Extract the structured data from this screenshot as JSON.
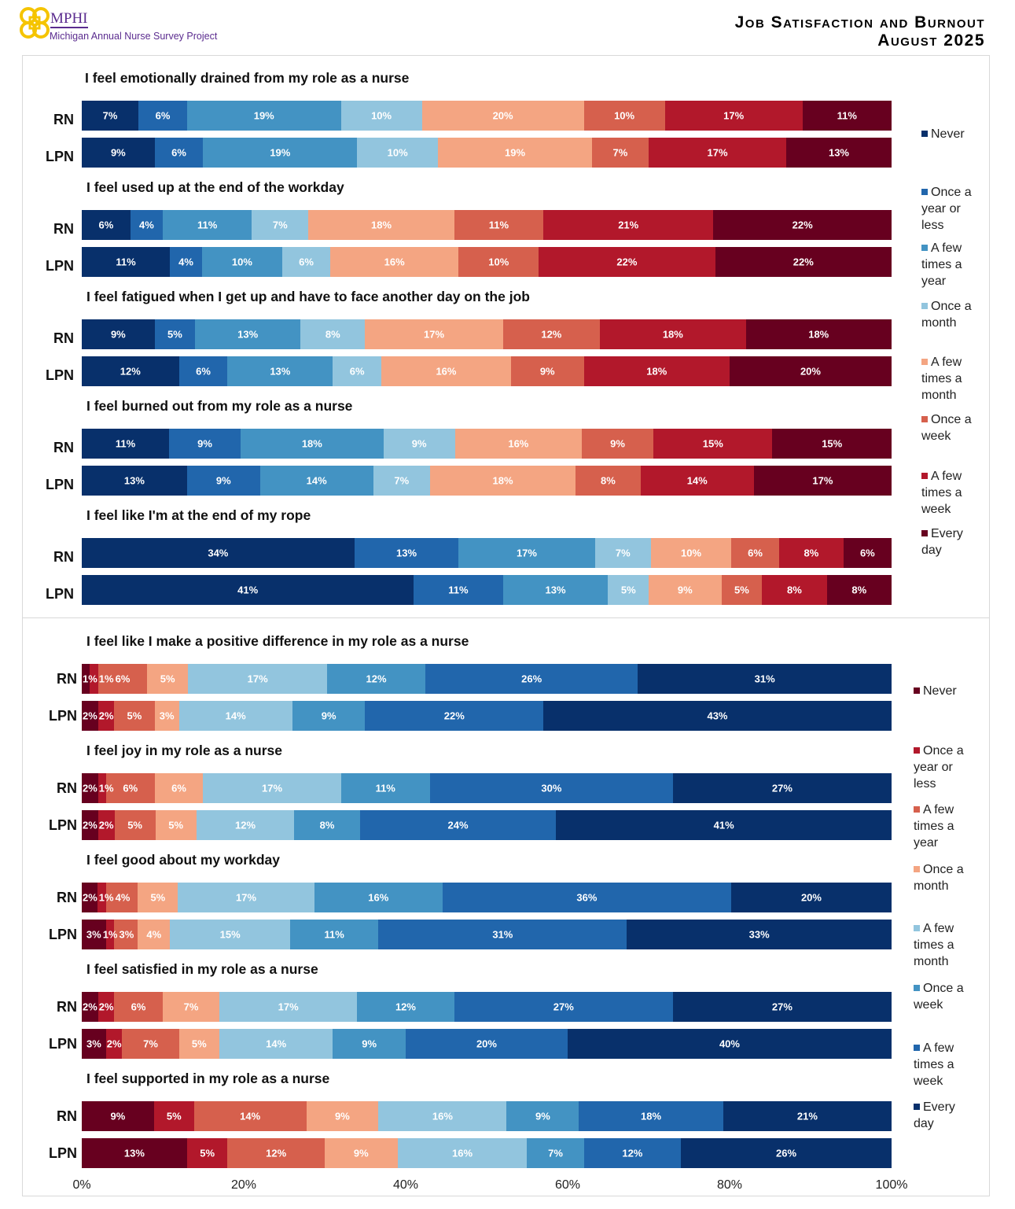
{
  "header": {
    "logo_name": "MPHI",
    "logo_subtitle": "Michigan Annual Nurse Survey Project",
    "title_line1": "Job Satisfaction and Burnout",
    "title_line2": "August 2025"
  },
  "colors": {
    "navy": "#08306b",
    "blue": "#2166ac",
    "mid_blue": "#4393c3",
    "light_blue": "#92c5de",
    "light_orange": "#f4a582",
    "orange_red": "#d6604d",
    "red": "#b2182b",
    "dark_red": "#67001f"
  },
  "chart_data": [
    {
      "type": "bar",
      "orientation": "horizontal",
      "stacked": "100%",
      "legend_placement": "right",
      "legend": [
        "Never",
        "Once a year or less",
        "A few times a year",
        "Once a month",
        "A few times a month",
        "Once a week",
        "A few times a week",
        "Every day"
      ],
      "legend_colors": [
        "#08306b",
        "#2166ac",
        "#4393c3",
        "#92c5de",
        "#f4a582",
        "#d6604d",
        "#b2182b",
        "#67001f"
      ],
      "groups": [
        {
          "title": "I feel emotionally drained from my role as a nurse",
          "rows": [
            {
              "label": "RN",
              "values": [
                7,
                6,
                19,
                10,
                20,
                10,
                17,
                11
              ]
            },
            {
              "label": "LPN",
              "values": [
                9,
                6,
                19,
                10,
                19,
                7,
                17,
                13
              ]
            }
          ]
        },
        {
          "title": "I feel used up at the end of the workday",
          "rows": [
            {
              "label": "RN",
              "values": [
                6,
                4,
                11,
                7,
                18,
                11,
                21,
                22
              ]
            },
            {
              "label": "LPN",
              "values": [
                11,
                4,
                10,
                6,
                16,
                10,
                22,
                22
              ]
            }
          ]
        },
        {
          "title": "I feel fatigued when I get up and have to face another day on the job",
          "rows": [
            {
              "label": "RN",
              "values": [
                9,
                5,
                13,
                8,
                17,
                12,
                18,
                18
              ]
            },
            {
              "label": "LPN",
              "values": [
                12,
                6,
                13,
                6,
                16,
                9,
                18,
                20
              ]
            }
          ]
        },
        {
          "title": "I feel burned out from my role as a nurse",
          "rows": [
            {
              "label": "RN",
              "values": [
                11,
                9,
                18,
                9,
                16,
                9,
                15,
                15
              ]
            },
            {
              "label": "LPN",
              "values": [
                13,
                9,
                14,
                7,
                18,
                8,
                14,
                17
              ]
            }
          ]
        },
        {
          "title": "I feel like I'm at the end of my rope",
          "rows": [
            {
              "label": "RN",
              "values": [
                34,
                13,
                17,
                7,
                10,
                6,
                8,
                6
              ]
            },
            {
              "label": "LPN",
              "values": [
                41,
                11,
                13,
                5,
                9,
                5,
                8,
                8
              ]
            }
          ]
        }
      ]
    },
    {
      "type": "bar",
      "orientation": "horizontal",
      "stacked": "100%",
      "legend_placement": "right",
      "legend": [
        "Never",
        "Once a year or less",
        "A few times a year",
        "Once a month",
        "A few times a month",
        "Once a week",
        "A few times a week",
        "Every day"
      ],
      "legend_colors": [
        "#67001f",
        "#b2182b",
        "#d6604d",
        "#f4a582",
        "#92c5de",
        "#4393c3",
        "#2166ac",
        "#08306b"
      ],
      "groups": [
        {
          "title": "I feel like I make a positive difference in my role as a nurse",
          "rows": [
            {
              "label": "RN",
              "values": [
                1,
                1,
                6,
                5,
                17,
                12,
                26,
                31
              ]
            },
            {
              "label": "LPN",
              "values": [
                2,
                2,
                5,
                3,
                14,
                9,
                22,
                43
              ]
            }
          ]
        },
        {
          "title": "I feel joy in my role as a nurse",
          "rows": [
            {
              "label": "RN",
              "values": [
                2,
                1,
                6,
                6,
                17,
                11,
                30,
                27
              ]
            },
            {
              "label": "LPN",
              "values": [
                2,
                2,
                5,
                5,
                12,
                8,
                24,
                41
              ]
            }
          ]
        },
        {
          "title": "I feel good about my workday",
          "rows": [
            {
              "label": "RN",
              "values": [
                2,
                1,
                4,
                5,
                17,
                16,
                36,
                20
              ]
            },
            {
              "label": "LPN",
              "values": [
                3,
                1,
                3,
                4,
                15,
                11,
                31,
                33
              ]
            }
          ]
        },
        {
          "title": "I feel satisfied in my role as a nurse",
          "rows": [
            {
              "label": "RN",
              "values": [
                2,
                2,
                6,
                7,
                17,
                12,
                27,
                27
              ]
            },
            {
              "label": "LPN",
              "values": [
                3,
                2,
                7,
                5,
                14,
                9,
                20,
                40
              ]
            }
          ]
        },
        {
          "title": "I feel supported in my role as a nurse",
          "rows": [
            {
              "label": "RN",
              "values": [
                9,
                5,
                14,
                9,
                16,
                9,
                18,
                21
              ]
            },
            {
              "label": "LPN",
              "values": [
                13,
                5,
                12,
                9,
                16,
                7,
                12,
                26
              ]
            }
          ]
        }
      ],
      "x_ticks": [
        "0%",
        "20%",
        "40%",
        "60%",
        "80%",
        "100%"
      ],
      "xlim": [
        0,
        100
      ]
    }
  ]
}
